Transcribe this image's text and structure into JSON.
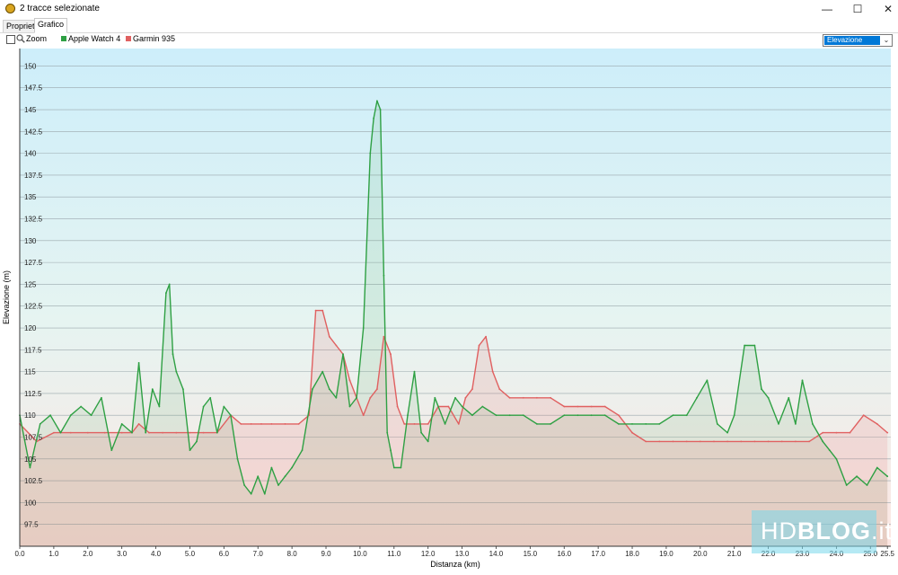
{
  "window": {
    "title": "2 tracce selezionate"
  },
  "tabs": [
    {
      "label": "Proprietà"
    },
    {
      "label": "Grafico"
    }
  ],
  "toolbar": {
    "zoom_label": "Zoom",
    "metric_select": "Elevazione"
  },
  "watermark": {
    "brand": "HDBLOG.it"
  },
  "colors": {
    "apple": "#2ea043",
    "garmin": "#e06060",
    "bg_top": "#cfeef9",
    "bg_bottom": "#fde8e4",
    "grid": "#9aa7ad"
  },
  "chart_data": {
    "type": "area",
    "xlabel": "Distanza  (km)",
    "ylabel": "Elevazione (m)",
    "xlim": [
      0,
      25.6
    ],
    "ylim": [
      95,
      152
    ],
    "xticks": [
      "0.0",
      "1.0",
      "2.0",
      "3.0",
      "4.0",
      "5.0",
      "6.0",
      "7.0",
      "8.0",
      "9.0",
      "10.0",
      "11.0",
      "12.0",
      "13.0",
      "14.0",
      "15.0",
      "16.0",
      "17.0",
      "18.0",
      "19.0",
      "20.0",
      "21.0",
      "22.0",
      "23.0",
      "24.0",
      "25.0",
      "25.5"
    ],
    "yticks": [
      "97.5",
      "100",
      "102.5",
      "105",
      "107.5",
      "110",
      "112.5",
      "115",
      "117.5",
      "120",
      "122.5",
      "125",
      "127.5",
      "130",
      "132.5",
      "135",
      "137.5",
      "140",
      "142.5",
      "145",
      "147.5",
      "150"
    ],
    "grid": true,
    "legend_position": "top-left",
    "series": [
      {
        "name": "Apple Watch 4",
        "color": "#2ea043",
        "x": [
          0,
          0.3,
          0.6,
          0.9,
          1.2,
          1.5,
          1.8,
          2.1,
          2.4,
          2.7,
          3.0,
          3.3,
          3.5,
          3.7,
          3.9,
          4.1,
          4.3,
          4.4,
          4.5,
          4.6,
          4.8,
          5.0,
          5.2,
          5.4,
          5.6,
          5.8,
          6.0,
          6.2,
          6.4,
          6.6,
          6.8,
          7.0,
          7.2,
          7.4,
          7.6,
          7.8,
          8.0,
          8.3,
          8.6,
          8.9,
          9.1,
          9.3,
          9.5,
          9.7,
          9.9,
          10.1,
          10.3,
          10.4,
          10.5,
          10.6,
          10.7,
          10.8,
          10.9,
          11.0,
          11.2,
          11.4,
          11.6,
          11.8,
          12.0,
          12.2,
          12.5,
          12.8,
          13.0,
          13.3,
          13.6,
          14.0,
          14.4,
          14.8,
          15.2,
          15.6,
          16.0,
          16.4,
          16.8,
          17.2,
          17.6,
          18.0,
          18.4,
          18.8,
          19.2,
          19.6,
          19.9,
          20.2,
          20.5,
          20.8,
          21.0,
          21.3,
          21.6,
          21.8,
          22.0,
          22.3,
          22.6,
          22.8,
          23.0,
          23.3,
          23.6,
          23.8,
          24.0,
          24.3,
          24.6,
          24.9,
          25.2,
          25.5
        ],
        "y": [
          110,
          104,
          109,
          110,
          108,
          110,
          111,
          110,
          112,
          106,
          109,
          108,
          116,
          108,
          113,
          111,
          124,
          125,
          117,
          115,
          113,
          106,
          107,
          111,
          112,
          108,
          111,
          110,
          105,
          102,
          101,
          103,
          101,
          104,
          102,
          103,
          104,
          106,
          113,
          115,
          113,
          112,
          117,
          111,
          112,
          120,
          140,
          144,
          146,
          145,
          126,
          108,
          106,
          104,
          104,
          110,
          115,
          108,
          107,
          112,
          109,
          112,
          111,
          110,
          111,
          110,
          110,
          110,
          109,
          109,
          110,
          110,
          110,
          110,
          109,
          109,
          109,
          109,
          110,
          110,
          112,
          114,
          109,
          108,
          110,
          118,
          118,
          113,
          112,
          109,
          112,
          109,
          114,
          109,
          107,
          106,
          105,
          102,
          103,
          102,
          104,
          103
        ]
      },
      {
        "name": "Garmin 935",
        "color": "#e06060",
        "x": [
          0,
          0.5,
          1.0,
          1.5,
          2.0,
          2.5,
          3.0,
          3.3,
          3.5,
          3.8,
          4.2,
          4.6,
          5.0,
          5.4,
          5.8,
          6.2,
          6.5,
          6.8,
          7.1,
          7.4,
          7.8,
          8.2,
          8.5,
          8.7,
          8.9,
          9.1,
          9.3,
          9.5,
          9.7,
          9.9,
          10.1,
          10.3,
          10.5,
          10.7,
          10.9,
          11.1,
          11.3,
          11.6,
          12.0,
          12.3,
          12.6,
          12.9,
          13.1,
          13.3,
          13.5,
          13.7,
          13.9,
          14.1,
          14.4,
          14.8,
          15.2,
          15.6,
          16.0,
          16.4,
          16.8,
          17.2,
          17.6,
          18.0,
          18.4,
          18.8,
          19.2,
          19.6,
          20.0,
          20.4,
          20.8,
          21.2,
          21.6,
          22.0,
          22.4,
          22.8,
          23.2,
          23.6,
          24.0,
          24.4,
          24.8,
          25.2,
          25.5
        ],
        "y": [
          109,
          107,
          108,
          108,
          108,
          108,
          108,
          108,
          109,
          108,
          108,
          108,
          108,
          108,
          108,
          110,
          109,
          109,
          109,
          109,
          109,
          109,
          110,
          122,
          122,
          119,
          118,
          117,
          114,
          112,
          110,
          112,
          113,
          119,
          117,
          111,
          109,
          109,
          109,
          111,
          111,
          109,
          112,
          113,
          118,
          119,
          115,
          113,
          112,
          112,
          112,
          112,
          111,
          111,
          111,
          111,
          110,
          108,
          107,
          107,
          107,
          107,
          107,
          107,
          107,
          107,
          107,
          107,
          107,
          107,
          107,
          108,
          108,
          108,
          110,
          109,
          108
        ]
      }
    ]
  }
}
